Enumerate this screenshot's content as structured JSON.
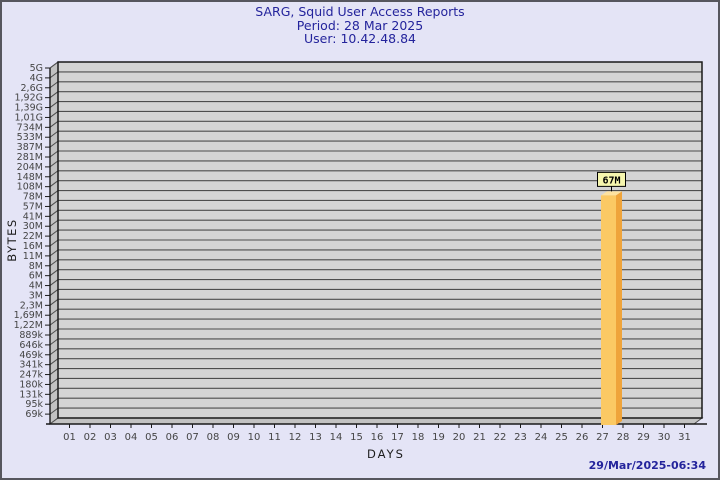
{
  "page": {
    "background": "#e4e4f6",
    "border_color": "#56565e",
    "accent_navy": "#24249c"
  },
  "header": {
    "title": "SARG, Squid User Access Reports",
    "period": "Period: 28 Mar 2025",
    "user": "User: 10.42.48.84"
  },
  "footer": {
    "timestamp": "29/Mar/2025-06:34"
  },
  "chart_data": {
    "type": "bar",
    "title": "SARG, Squid User Access Reports",
    "subtitle": "Period: 28 Mar 2025",
    "user_line": "User: 10.42.48.84",
    "xlabel": "DAYS",
    "ylabel": "BYTES",
    "y_scale": "log",
    "grid": "on",
    "y_tick_labels": [
      "5G",
      "4G",
      "2,6G",
      "1,92G",
      "1,39G",
      "1,01G",
      "734M",
      "533M",
      "387M",
      "281M",
      "204M",
      "148M",
      "108M",
      "78M",
      "57M",
      "41M",
      "30M",
      "22M",
      "16M",
      "11M",
      "8M",
      "6M",
      "4M",
      "3M",
      "2,3M",
      "1,69M",
      "1,22M",
      "889k",
      "646k",
      "469k",
      "341k",
      "247k",
      "180k",
      "131k",
      "95k",
      "69k"
    ],
    "x_tick_labels": [
      "01",
      "02",
      "03",
      "04",
      "05",
      "06",
      "07",
      "08",
      "09",
      "10",
      "11",
      "12",
      "13",
      "14",
      "15",
      "16",
      "17",
      "18",
      "19",
      "20",
      "21",
      "22",
      "23",
      "24",
      "25",
      "26",
      "27",
      "28",
      "29",
      "30",
      "31"
    ],
    "bars": [
      {
        "day": 28,
        "label": "67M",
        "value_bytes": 67000000
      }
    ],
    "colors": {
      "plot_bg": "#d4d4d4",
      "grid_line": "#4d4d4d",
      "wall": "#c2c2c2",
      "axis_line": "#1a1a1a",
      "tick_text": "#454545",
      "axis_title_text": "#1c1c1c",
      "bar_front": "#fbc964",
      "bar_side": "#efa43b",
      "bar_top": "#fde2a0",
      "value_label_bg": "#f6f6ae",
      "value_label_border": "#000000",
      "value_label_text": "#000000"
    }
  }
}
